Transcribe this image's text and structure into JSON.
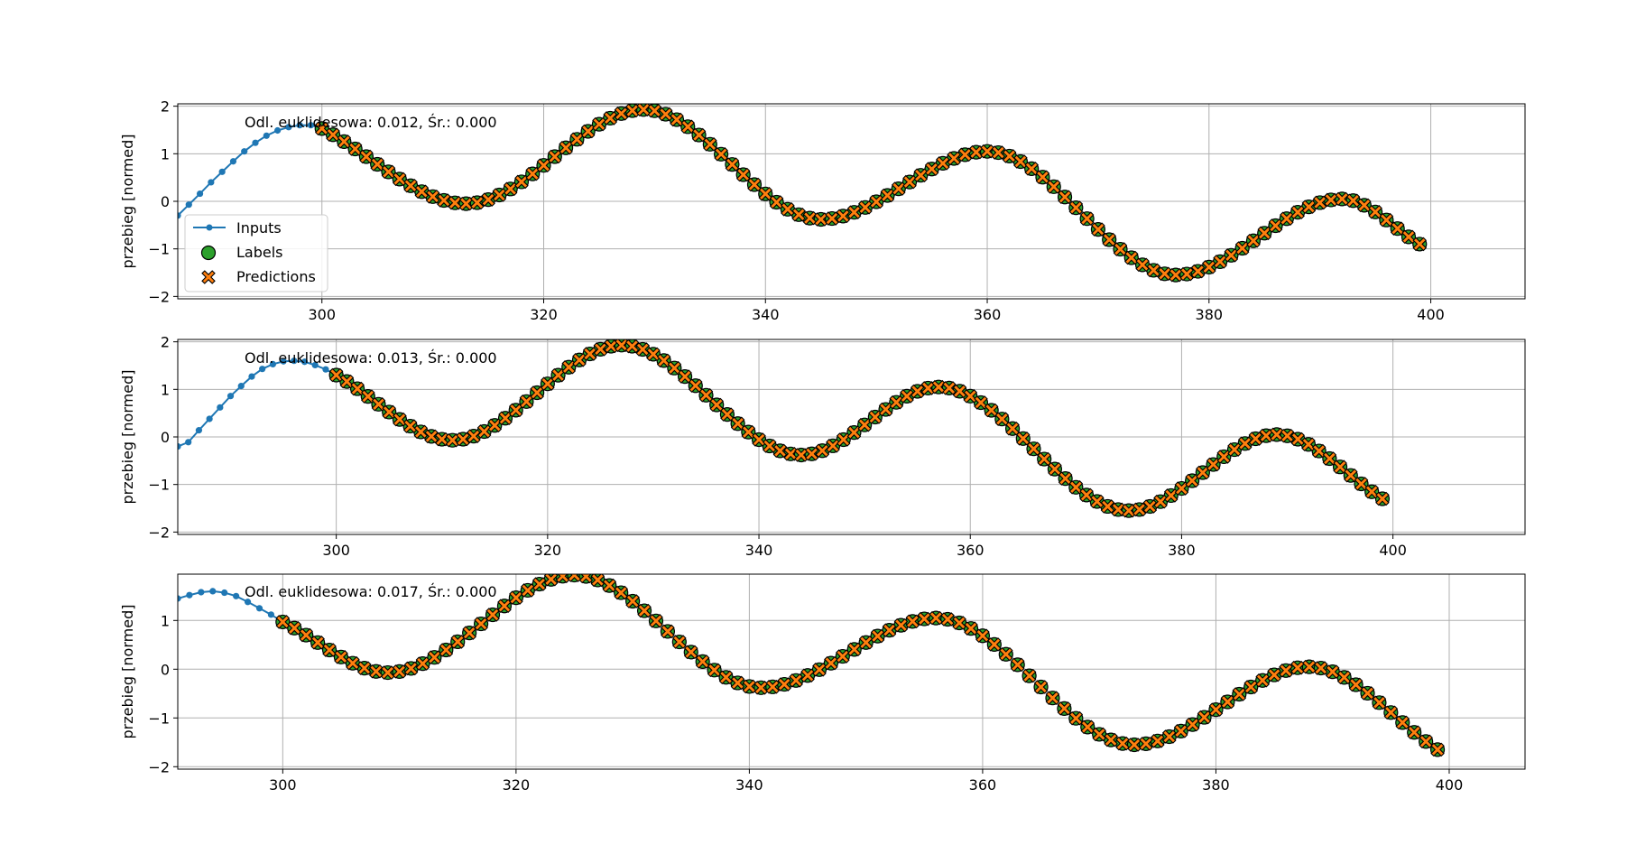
{
  "colors": {
    "inputs": "#1f77b4",
    "labels": "#2ca02c",
    "predictions": "#ff7f0e",
    "grid": "#b0b0b0",
    "frame": "#000000"
  },
  "legend": {
    "placement": "lower-left of first panel",
    "items": [
      {
        "key": "inputs",
        "label": "Inputs",
        "marker": "line-dot"
      },
      {
        "key": "labels",
        "label": "Labels",
        "marker": "circle"
      },
      {
        "key": "predictions",
        "label": "Predictions",
        "marker": "x"
      }
    ]
  },
  "chart_data": [
    {
      "type": "line",
      "ylabel": "przebieg [normed]",
      "annotation": "Odl. euklidesowa: 0.012, Śr.: 0.000",
      "xlim": [
        287,
        408.5
      ],
      "ylim": [
        -2.05,
        2.05
      ],
      "xticks": [
        300,
        320,
        340,
        360,
        380,
        400
      ],
      "yticks": [
        -2,
        -1,
        0,
        1,
        2
      ],
      "grid": true,
      "inputs": {
        "x_start": 287,
        "x_end": 300,
        "values": [
          -0.3,
          -0.07,
          0.16,
          0.4,
          0.62,
          0.84,
          1.05,
          1.23,
          1.38,
          1.49,
          1.56,
          1.6,
          1.6,
          1.53
        ]
      },
      "labels": {
        "x_start": 300,
        "x_end": 399,
        "key_points": [
          [
            300,
            1.53
          ],
          [
            313,
            -0.05
          ],
          [
            329,
            1.93
          ],
          [
            345,
            -0.38
          ],
          [
            360,
            1.05
          ],
          [
            377,
            -1.55
          ],
          [
            392,
            0.05
          ],
          [
            399,
            -0.9
          ]
        ]
      },
      "predictions": {
        "x_start": 300,
        "x_end": 399,
        "key_points": [
          [
            300,
            1.53
          ],
          [
            313,
            -0.05
          ],
          [
            329,
            1.93
          ],
          [
            345,
            -0.38
          ],
          [
            360,
            1.05
          ],
          [
            377,
            -1.55
          ],
          [
            392,
            0.05
          ],
          [
            399,
            -0.9
          ]
        ]
      }
    },
    {
      "type": "line",
      "ylabel": "przebieg [normed]",
      "annotation": "Odl. euklidesowa: 0.013, Śr.: 0.000",
      "xlim": [
        285,
        412.5
      ],
      "ylim": [
        -2.05,
        2.05
      ],
      "xticks": [
        300,
        320,
        340,
        360,
        380,
        400
      ],
      "yticks": [
        -2,
        -1,
        0,
        1,
        2
      ],
      "grid": true,
      "inputs": {
        "x_start": 285,
        "x_end": 300,
        "values": [
          -0.2,
          -0.11,
          0.14,
          0.38,
          0.62,
          0.86,
          1.07,
          1.27,
          1.43,
          1.53,
          1.59,
          1.6,
          1.58,
          1.51,
          1.42,
          1.3
        ]
      },
      "labels": {
        "x_start": 300,
        "x_end": 399,
        "key_points": [
          [
            300,
            1.3
          ],
          [
            311,
            -0.07
          ],
          [
            327,
            1.93
          ],
          [
            344,
            -0.38
          ],
          [
            357,
            1.05
          ],
          [
            375,
            -1.55
          ],
          [
            389,
            0.05
          ],
          [
            399,
            -1.3
          ]
        ]
      },
      "predictions": {
        "x_start": 300,
        "x_end": 399,
        "key_points": [
          [
            300,
            1.3
          ],
          [
            311,
            -0.07
          ],
          [
            327,
            1.93
          ],
          [
            344,
            -0.38
          ],
          [
            357,
            1.05
          ],
          [
            375,
            -1.55
          ],
          [
            389,
            0.05
          ],
          [
            399,
            -1.3
          ]
        ]
      }
    },
    {
      "type": "line",
      "ylabel": "przebieg [normed]",
      "annotation": "Odl. euklidesowa: 0.017, Śr.: 0.000",
      "xlim": [
        291,
        406.5
      ],
      "ylim": [
        -2.05,
        1.95
      ],
      "xticks": [
        300,
        320,
        340,
        360,
        380,
        400
      ],
      "yticks": [
        -2,
        -1,
        0,
        1
      ],
      "grid": true,
      "inputs": {
        "x_start": 291,
        "x_end": 300,
        "values": [
          1.45,
          1.52,
          1.58,
          1.6,
          1.57,
          1.5,
          1.38,
          1.25,
          1.12,
          0.97
        ]
      },
      "labels": {
        "x_start": 300,
        "x_end": 399,
        "key_points": [
          [
            300,
            0.97
          ],
          [
            309,
            -0.07
          ],
          [
            325,
            1.93
          ],
          [
            341,
            -0.38
          ],
          [
            356,
            1.05
          ],
          [
            373,
            -1.55
          ],
          [
            388,
            0.05
          ],
          [
            399,
            -1.65
          ]
        ]
      },
      "predictions": {
        "x_start": 300,
        "x_end": 399,
        "key_points": [
          [
            300,
            0.97
          ],
          [
            309,
            -0.07
          ],
          [
            325,
            1.93
          ],
          [
            341,
            -0.38
          ],
          [
            356,
            1.05
          ],
          [
            373,
            -1.55
          ],
          [
            388,
            0.05
          ],
          [
            399,
            -1.65
          ]
        ]
      }
    }
  ]
}
